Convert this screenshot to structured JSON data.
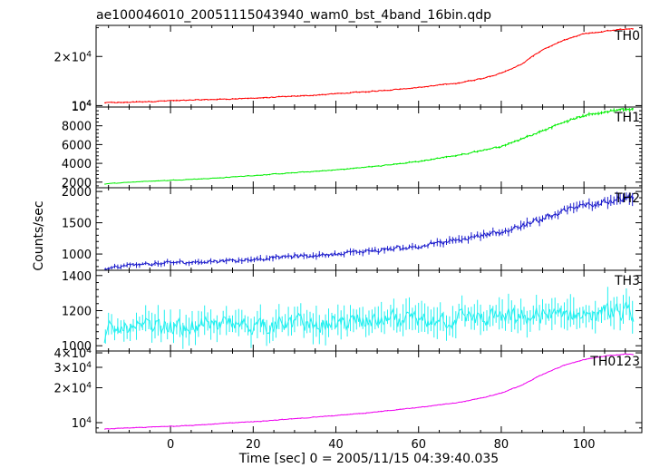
{
  "chart_data": {
    "type": "line",
    "title": "ae100046010_20051115043940_wam0_bst_4band_16bin.qdp",
    "xlabel": "Time [sec] 0 = 2005/11/15 04:39:40.035",
    "ylabel": "Counts/sec",
    "xlim": [
      -18,
      114
    ],
    "x_ticks": [
      0,
      20,
      40,
      60,
      80,
      100
    ],
    "x_tick_labels": [
      "0",
      "20",
      "40",
      "60",
      "80",
      "100"
    ],
    "grid": false,
    "panels": [
      {
        "name": "TH0",
        "color": "#ff0000",
        "scale": "log",
        "ylim": [
          9800,
          31000
        ],
        "y_ticks": [
          10000,
          20000
        ],
        "y_tick_labels": [
          {
            "base": "10",
            "sup": "4"
          },
          {
            "base": "2×10",
            "sup": "4"
          }
        ],
        "y_tick_labels_top": [
          {
            "base": "10",
            "sup": "4"
          }
        ],
        "x": [
          -16,
          -10,
          0,
          10,
          20,
          30,
          40,
          50,
          60,
          70,
          75,
          80,
          85,
          90,
          95,
          100,
          105,
          110,
          112
        ],
        "y": [
          10400,
          10500,
          10700,
          10900,
          11100,
          11400,
          11800,
          12300,
          12900,
          13800,
          14600,
          15800,
          17900,
          22000,
          25000,
          27500,
          28500,
          29500,
          29500
        ],
        "noise": 0.006
      },
      {
        "name": "TH1",
        "color": "#00ee00",
        "scale": "linear",
        "ylim": [
          1400,
          10000
        ],
        "y_ticks": [
          2000,
          4000,
          6000,
          8000
        ],
        "y_tick_labels": [
          "2000",
          "4000",
          "6000",
          "8000"
        ],
        "x": [
          -16,
          -10,
          0,
          10,
          20,
          30,
          40,
          50,
          60,
          70,
          80,
          85,
          90,
          95,
          100,
          105,
          110,
          112
        ],
        "y": [
          1800,
          2000,
          2200,
          2400,
          2700,
          3000,
          3300,
          3700,
          4200,
          4900,
          5800,
          6600,
          7500,
          8400,
          9000,
          9500,
          9800,
          9800
        ],
        "noise": 0.012
      },
      {
        "name": "TH2",
        "color": "#1a1acc",
        "scale": "linear",
        "ylim": [
          740,
          2060
        ],
        "y_ticks": [
          1000,
          1500,
          2000
        ],
        "y_tick_labels": [
          "1000",
          "1500",
          "2000"
        ],
        "x": [
          -16,
          -10,
          0,
          10,
          20,
          30,
          40,
          50,
          60,
          70,
          80,
          90,
          100,
          105,
          110,
          112
        ],
        "y": [
          760,
          820,
          860,
          880,
          920,
          960,
          1000,
          1060,
          1120,
          1230,
          1350,
          1560,
          1780,
          1850,
          1900,
          1900
        ],
        "noise": 0.028
      },
      {
        "name": "TH3",
        "color": "#22f0f0",
        "scale": "linear",
        "ylim": [
          970,
          1430
        ],
        "y_ticks": [
          1000,
          1200,
          1400
        ],
        "y_tick_labels": [
          "1000",
          "1200",
          "1400"
        ],
        "x": [
          -16,
          -15,
          -12,
          0,
          20,
          40,
          60,
          80,
          100,
          112
        ],
        "y": [
          1000,
          1080,
          1100,
          1110,
          1120,
          1130,
          1150,
          1160,
          1180,
          1190
        ],
        "noise": 0.04
      },
      {
        "name": "TH0123",
        "color": "#ee00ee",
        "scale": "log",
        "ylim": [
          8200,
          41500
        ],
        "y_ticks": [
          10000,
          20000,
          30000,
          40000
        ],
        "y_tick_labels": [
          {
            "base": "10",
            "sup": "4"
          },
          {
            "base": "2×10",
            "sup": "4"
          },
          {
            "base": "3×10",
            "sup": "4"
          },
          {
            "base": "4×10",
            "sup": "4"
          }
        ],
        "x": [
          -16,
          -10,
          0,
          10,
          20,
          30,
          40,
          50,
          60,
          70,
          75,
          80,
          85,
          90,
          95,
          100,
          105,
          110,
          112
        ],
        "y": [
          8800,
          9000,
          9300,
          9700,
          10200,
          10800,
          11500,
          12400,
          13500,
          15000,
          16200,
          18000,
          21000,
          26000,
          31000,
          35000,
          37500,
          39000,
          38500
        ],
        "noise": 0.006
      }
    ]
  }
}
